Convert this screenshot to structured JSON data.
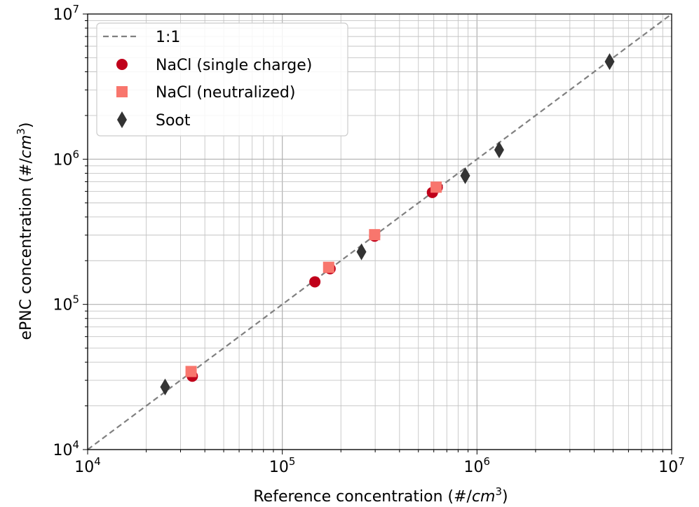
{
  "chart_data": {
    "type": "scatter",
    "xscale": "log",
    "yscale": "log",
    "xlim": [
      10000,
      10000000
    ],
    "ylim": [
      10000,
      10000000
    ],
    "grid": "major and minor",
    "legend_position": "top-left",
    "xlabel": {
      "prefix": "Reference concentration (#/",
      "var": "cm",
      "sup": "3",
      "suffix": ")"
    },
    "ylabel": {
      "prefix": "ePNC concentration (#/",
      "var": "cm",
      "sup": "3",
      "suffix": ")"
    },
    "ticks": [
      {
        "value": 10000,
        "base": "10",
        "exp": "4"
      },
      {
        "value": 100000,
        "base": "10",
        "exp": "5"
      },
      {
        "value": 1000000,
        "base": "10",
        "exp": "6"
      },
      {
        "value": 10000000,
        "base": "10",
        "exp": "7"
      }
    ],
    "reference_line": {
      "name": "1:1",
      "color": "#808080",
      "style": "dashed"
    },
    "series": [
      {
        "name": "NaCl (single charge)",
        "marker": "circle",
        "color": "#c0001a",
        "points": [
          {
            "x": 34500,
            "y": 32000
          },
          {
            "x": 147000,
            "y": 143000
          },
          {
            "x": 176000,
            "y": 176000
          },
          {
            "x": 298000,
            "y": 295000
          },
          {
            "x": 590000,
            "y": 590000
          },
          {
            "x": 625000,
            "y": 640000
          }
        ]
      },
      {
        "name": "NaCl (neutralized)",
        "marker": "square",
        "color": "#f8766d",
        "points": [
          {
            "x": 34000,
            "y": 34500
          },
          {
            "x": 173000,
            "y": 180000
          },
          {
            "x": 298000,
            "y": 302000
          },
          {
            "x": 617000,
            "y": 642000
          }
        ]
      },
      {
        "name": "Soot",
        "marker": "diamond",
        "color": "#333333",
        "points": [
          {
            "x": 25000,
            "y": 27000
          },
          {
            "x": 255000,
            "y": 230000
          },
          {
            "x": 870000,
            "y": 770000
          },
          {
            "x": 1300000,
            "y": 1160000
          },
          {
            "x": 4800000,
            "y": 4700000
          }
        ]
      }
    ]
  }
}
